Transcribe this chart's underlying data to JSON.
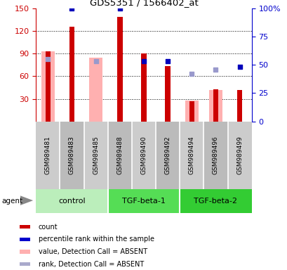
{
  "title": "GDS5351 / 1566402_at",
  "samples": [
    "GSM989481",
    "GSM989483",
    "GSM989485",
    "GSM989488",
    "GSM989490",
    "GSM989492",
    "GSM989494",
    "GSM989496",
    "GSM989499"
  ],
  "groups": [
    {
      "label": "control",
      "color": "#bbeebb",
      "indices": [
        0,
        1,
        2
      ]
    },
    {
      "label": "TGF-beta-1",
      "color": "#55dd55",
      "indices": [
        3,
        4,
        5
      ]
    },
    {
      "label": "TGF-beta-2",
      "color": "#33cc33",
      "indices": [
        6,
        7,
        8
      ]
    }
  ],
  "red_bars": [
    93,
    125,
    0,
    138,
    90,
    73,
    27,
    43,
    42
  ],
  "pink_bars": [
    93,
    0,
    84,
    0,
    0,
    0,
    28,
    42,
    0
  ],
  "blue_dots": [
    null,
    100,
    null,
    100,
    53,
    53,
    null,
    null,
    48
  ],
  "lblue_dots": [
    55,
    null,
    53,
    null,
    null,
    null,
    42,
    46,
    null
  ],
  "ylim_left": [
    0,
    150
  ],
  "ylim_right": [
    0,
    100
  ],
  "yticks_left": [
    30,
    60,
    90,
    120,
    150
  ],
  "yticks_right": [
    0,
    25,
    50,
    75,
    100
  ],
  "background_color": "#ffffff",
  "left_axis_color": "#cc0000",
  "right_axis_color": "#0000cc",
  "agent_label": "agent",
  "legend_items": [
    {
      "color": "#cc0000",
      "label": "count"
    },
    {
      "color": "#0000cc",
      "label": "percentile rank within the sample"
    },
    {
      "color": "#ffb0b0",
      "label": "value, Detection Call = ABSENT"
    },
    {
      "color": "#aaaacc",
      "label": "rank, Detection Call = ABSENT"
    }
  ]
}
